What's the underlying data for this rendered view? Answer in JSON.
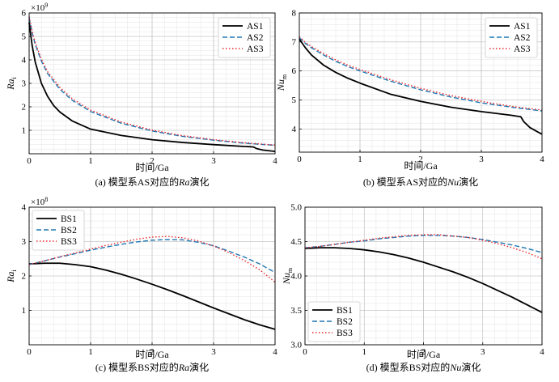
{
  "chart_data": [
    {
      "type": "line",
      "panel": "a",
      "caption": "(a) 模型系AS对应的Ra演化",
      "caption_parts": {
        "before": "(a) 模型系AS对应的",
        "italic": "Ra",
        "after": "演化"
      },
      "xlabel": "时间/Ga",
      "ylabel": "Ra",
      "ylabel_sub": "i",
      "y_multiplier": "×10",
      "y_multiplier_exp": "9",
      "xlim": [
        0,
        4
      ],
      "ylim": [
        0,
        6
      ],
      "xticks": [
        0,
        1,
        2,
        3,
        4
      ],
      "yticks": [
        1,
        2,
        3,
        4,
        5,
        6
      ],
      "grid": true,
      "legend_position": "top-right",
      "series": [
        {
          "name": "AS1",
          "style": "solid",
          "color": "#000000",
          "x": [
            0,
            0.05,
            0.1,
            0.2,
            0.3,
            0.4,
            0.5,
            0.7,
            1.0,
            1.5,
            2.0,
            2.5,
            3.0,
            3.5,
            3.6,
            3.65,
            3.7,
            3.8,
            4.0
          ],
          "y": [
            5.6,
            4.6,
            3.9,
            3.0,
            2.45,
            2.05,
            1.78,
            1.4,
            1.05,
            0.78,
            0.6,
            0.48,
            0.39,
            0.31,
            0.3,
            0.29,
            0.22,
            0.16,
            0.1
          ]
        },
        {
          "name": "AS2",
          "style": "dashed",
          "color": "#1f77b4",
          "x": [
            0,
            0.05,
            0.1,
            0.2,
            0.3,
            0.5,
            0.7,
            1.0,
            1.5,
            2.0,
            2.5,
            3.0,
            3.5,
            4.0
          ],
          "y": [
            5.8,
            5.15,
            4.65,
            3.95,
            3.42,
            2.75,
            2.28,
            1.8,
            1.3,
            0.97,
            0.74,
            0.58,
            0.45,
            0.36
          ]
        },
        {
          "name": "AS3",
          "style": "dotted",
          "color": "#e8262b",
          "x": [
            0,
            0.05,
            0.1,
            0.2,
            0.3,
            0.5,
            0.7,
            1.0,
            1.5,
            2.0,
            2.5,
            3.0,
            3.5,
            4.0
          ],
          "y": [
            5.85,
            5.22,
            4.73,
            4.03,
            3.5,
            2.83,
            2.35,
            1.86,
            1.35,
            1.01,
            0.77,
            0.6,
            0.47,
            0.37
          ]
        }
      ]
    },
    {
      "type": "line",
      "panel": "b",
      "caption": "(b) 模型系AS对应的Nu演化",
      "caption_parts": {
        "before": "(b) 模型系AS对应的",
        "italic": "Nu",
        "after": "演化"
      },
      "xlabel": "时间/Ga",
      "ylabel": "Nu",
      "ylabel_sub": "m",
      "xlim": [
        0,
        4
      ],
      "ylim": [
        3.2,
        8
      ],
      "xticks": [
        0,
        1,
        2,
        3,
        4
      ],
      "yticks": [
        4,
        5,
        6,
        7,
        8
      ],
      "grid": true,
      "legend_position": "top-right",
      "series": [
        {
          "name": "AS1",
          "style": "solid",
          "color": "#000000",
          "x": [
            0,
            0.1,
            0.2,
            0.4,
            0.6,
            0.8,
            1.0,
            1.5,
            2.0,
            2.5,
            3.0,
            3.5,
            3.65,
            3.7,
            3.8,
            3.9,
            4.0
          ],
          "y": [
            7.1,
            6.8,
            6.55,
            6.2,
            5.95,
            5.75,
            5.58,
            5.2,
            4.95,
            4.75,
            4.6,
            4.47,
            4.42,
            4.25,
            4.05,
            3.93,
            3.82
          ]
        },
        {
          "name": "AS2",
          "style": "dashed",
          "color": "#1f77b4",
          "x": [
            0,
            0.1,
            0.2,
            0.4,
            0.6,
            0.8,
            1.0,
            1.5,
            2.0,
            2.5,
            3.0,
            3.5,
            4.0
          ],
          "y": [
            7.15,
            6.95,
            6.8,
            6.55,
            6.33,
            6.15,
            6.0,
            5.65,
            5.35,
            5.1,
            4.9,
            4.75,
            4.62
          ]
        },
        {
          "name": "AS3",
          "style": "dotted",
          "color": "#e8262b",
          "x": [
            0,
            0.1,
            0.2,
            0.4,
            0.6,
            0.8,
            1.0,
            1.5,
            2.0,
            2.5,
            3.0,
            3.5,
            4.0
          ],
          "y": [
            7.18,
            6.98,
            6.84,
            6.6,
            6.38,
            6.2,
            6.05,
            5.7,
            5.4,
            5.15,
            4.95,
            4.78,
            4.65
          ]
        }
      ]
    },
    {
      "type": "line",
      "panel": "c",
      "caption": "(c) 模型系BS对应的Ra演化",
      "caption_parts": {
        "before": "(c) 模型系BS对应的",
        "italic": "Ra",
        "after": "演化"
      },
      "xlabel": "时间/Ga",
      "ylabel": "Ra",
      "ylabel_sub": "i",
      "y_multiplier": "×10",
      "y_multiplier_exp": "8",
      "xlim": [
        0,
        4
      ],
      "ylim": [
        0,
        4
      ],
      "xticks": [
        0,
        1,
        2,
        3,
        4
      ],
      "yticks": [
        1,
        2,
        3,
        4
      ],
      "grid": true,
      "legend_position": "top-left",
      "series": [
        {
          "name": "BS1",
          "style": "solid",
          "color": "#000000",
          "x": [
            0,
            0.25,
            0.5,
            0.75,
            1.0,
            1.25,
            1.5,
            1.75,
            2.0,
            2.25,
            2.5,
            2.75,
            3.0,
            3.25,
            3.5,
            3.75,
            4.0
          ],
          "y": [
            2.35,
            2.37,
            2.37,
            2.33,
            2.27,
            2.17,
            2.05,
            1.91,
            1.76,
            1.6,
            1.43,
            1.25,
            1.07,
            0.9,
            0.73,
            0.58,
            0.45
          ]
        },
        {
          "name": "BS2",
          "style": "dashed",
          "color": "#1f77b4",
          "x": [
            0,
            0.25,
            0.5,
            0.75,
            1.0,
            1.25,
            1.5,
            1.75,
            2.0,
            2.25,
            2.5,
            2.75,
            3.0,
            3.25,
            3.5,
            3.75,
            4.0
          ],
          "y": [
            2.33,
            2.44,
            2.55,
            2.65,
            2.75,
            2.84,
            2.92,
            2.99,
            3.04,
            3.06,
            3.05,
            2.98,
            2.88,
            2.72,
            2.55,
            2.35,
            2.1
          ]
        },
        {
          "name": "BS3",
          "style": "dotted",
          "color": "#e8262b",
          "x": [
            0,
            0.25,
            0.5,
            0.75,
            1.0,
            1.25,
            1.5,
            1.75,
            2.0,
            2.25,
            2.5,
            2.75,
            3.0,
            3.25,
            3.5,
            3.75,
            4.0
          ],
          "y": [
            2.33,
            2.44,
            2.56,
            2.67,
            2.78,
            2.89,
            2.98,
            3.07,
            3.13,
            3.15,
            3.11,
            3.02,
            2.87,
            2.68,
            2.45,
            2.18,
            1.82
          ]
        }
      ]
    },
    {
      "type": "line",
      "panel": "d",
      "caption": "(d) 模型系BS对应的Nu演化",
      "caption_parts": {
        "before": "(d) 模型系BS对应的",
        "italic": "Nu",
        "after": "演化"
      },
      "xlabel": "时间/Ga",
      "ylabel": "Nu",
      "ylabel_sub": "m",
      "xlim": [
        0,
        4
      ],
      "ylim": [
        3.0,
        5.0
      ],
      "xticks": [
        0,
        1,
        2,
        3,
        4
      ],
      "yticks": [
        3.0,
        3.5,
        4.0,
        4.5,
        5.0
      ],
      "ytick_labels": [
        "3.0",
        "3.5",
        "4.0",
        "4.5",
        "5.0"
      ],
      "grid": true,
      "legend_position": "bottom-left",
      "series": [
        {
          "name": "BS1",
          "style": "solid",
          "color": "#000000",
          "x": [
            0,
            0.25,
            0.5,
            0.75,
            1.0,
            1.25,
            1.5,
            1.75,
            2.0,
            2.25,
            2.5,
            2.75,
            3.0,
            3.25,
            3.5,
            3.75,
            4.0
          ],
          "y": [
            4.4,
            4.41,
            4.41,
            4.4,
            4.38,
            4.35,
            4.31,
            4.26,
            4.2,
            4.13,
            4.06,
            3.98,
            3.89,
            3.79,
            3.69,
            3.58,
            3.47
          ]
        },
        {
          "name": "BS2",
          "style": "dashed",
          "color": "#1f77b4",
          "x": [
            0,
            0.25,
            0.5,
            0.75,
            1.0,
            1.25,
            1.5,
            1.75,
            2.0,
            2.25,
            2.5,
            2.75,
            3.0,
            3.25,
            3.5,
            3.75,
            4.0
          ],
          "y": [
            4.41,
            4.43,
            4.46,
            4.49,
            4.51,
            4.54,
            4.56,
            4.58,
            4.59,
            4.59,
            4.58,
            4.56,
            4.53,
            4.49,
            4.45,
            4.4,
            4.34
          ]
        },
        {
          "name": "BS3",
          "style": "dotted",
          "color": "#e8262b",
          "x": [
            0,
            0.25,
            0.5,
            0.75,
            1.0,
            1.25,
            1.5,
            1.75,
            2.0,
            2.25,
            2.5,
            2.75,
            3.0,
            3.25,
            3.5,
            3.75,
            4.0
          ],
          "y": [
            4.41,
            4.43,
            4.46,
            4.49,
            4.52,
            4.55,
            4.57,
            4.59,
            4.6,
            4.6,
            4.58,
            4.56,
            4.52,
            4.47,
            4.41,
            4.34,
            4.25
          ]
        }
      ]
    }
  ]
}
